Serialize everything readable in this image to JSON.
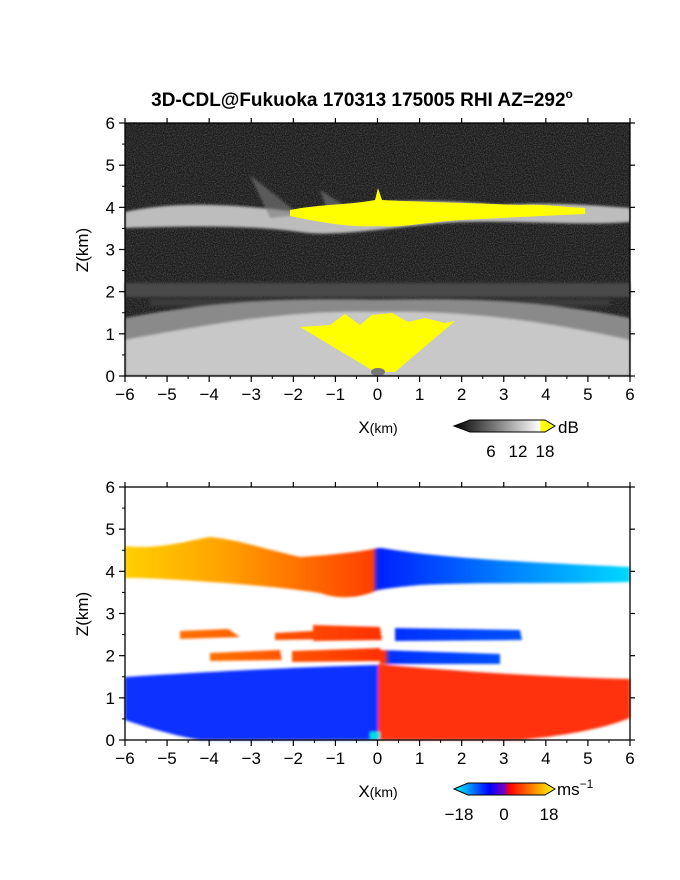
{
  "title": "3D-CDL@Fukuoka 170313 175005 RHI AZ=292",
  "title_superscript": "o",
  "chart_data": [
    {
      "type": "heatmap",
      "panel": "power",
      "xlabel_main": "X",
      "xlabel_unit": "(km)",
      "ylabel": "Z(km)",
      "xlim": [
        -6,
        6
      ],
      "ylim": [
        0,
        6
      ],
      "x_ticks": [
        "−6",
        "−5",
        "−4",
        "−3",
        "−2",
        "−1",
        "0",
        "1",
        "2",
        "3",
        "4",
        "5",
        "6"
      ],
      "y_ticks": [
        "0",
        "1",
        "2",
        "3",
        "4",
        "5",
        "6"
      ],
      "background": "#1a1a1a",
      "saturation_color": "#ffff00",
      "layers": [
        {
          "z_center": 3.9,
          "z_thickness": 0.45,
          "x_range": [
            -6,
            6
          ],
          "level": "bright"
        },
        {
          "z_center": 2.05,
          "z_thickness": 0.25,
          "x_range": [
            -6,
            6
          ],
          "level": "medium"
        },
        {
          "z_center": 1.75,
          "z_thickness": 0.15,
          "x_range": [
            -5.5,
            5.5
          ],
          "level": "faint"
        },
        {
          "z_center": 0.6,
          "z_thickness": 1.2,
          "x_range": [
            -6,
            6
          ],
          "level": "medium"
        }
      ],
      "saturated_regions": [
        {
          "x_range": [
            -2.0,
            4.4
          ],
          "z_range": [
            3.7,
            4.1
          ]
        },
        {
          "x_range": [
            -1.8,
            1.8
          ],
          "z_range": [
            0.05,
            1.55
          ]
        }
      ],
      "colorbar": {
        "unit": "dB",
        "ticks": [
          "6",
          "12",
          "18"
        ],
        "range": [
          0,
          20
        ],
        "colors": [
          "#000000",
          "#ffffff",
          "#ffff00"
        ]
      }
    },
    {
      "type": "heatmap",
      "panel": "doppler_velocity",
      "xlabel_main": "X",
      "xlabel_unit": "(km)",
      "ylabel": "Z(km)",
      "xlim": [
        -6,
        6
      ],
      "ylim": [
        0,
        6
      ],
      "x_ticks": [
        "−6",
        "−5",
        "−4",
        "−3",
        "−2",
        "−1",
        "0",
        "1",
        "2",
        "3",
        "4",
        "5",
        "6"
      ],
      "y_ticks": [
        "0",
        "1",
        "2",
        "3",
        "4",
        "5",
        "6"
      ],
      "layers": [
        {
          "x_range": [
            -6,
            0
          ],
          "z_range": [
            3.6,
            4.7
          ],
          "velocity_from": 14,
          "velocity_to": 4
        },
        {
          "x_range": [
            0,
            6
          ],
          "z_range": [
            3.7,
            4.5
          ],
          "velocity_from": -4,
          "velocity_to": -14
        },
        {
          "x_range": [
            -4.7,
            3.5
          ],
          "z_range": [
            2.3,
            2.6
          ],
          "velocity_left": 6,
          "velocity_right": -6
        },
        {
          "x_range": [
            -4.0,
            3.0
          ],
          "z_range": [
            1.8,
            2.1
          ],
          "velocity_left": 5,
          "velocity_right": -5
        },
        {
          "x_range": [
            -6,
            0
          ],
          "z_range": [
            0.05,
            1.55
          ],
          "velocity_from": -8,
          "velocity_to": -8
        },
        {
          "x_range": [
            0,
            6
          ],
          "z_range": [
            0.05,
            1.5
          ],
          "velocity_from": 8,
          "velocity_to": 8
        }
      ],
      "colorbar": {
        "unit": "ms",
        "unit_superscript": "−1",
        "ticks": [
          "−18",
          "0",
          "18"
        ],
        "range": [
          -20,
          20
        ],
        "colors": [
          "#00ffff",
          "#0000ff",
          "#ff0000",
          "#ffff00"
        ]
      }
    }
  ]
}
